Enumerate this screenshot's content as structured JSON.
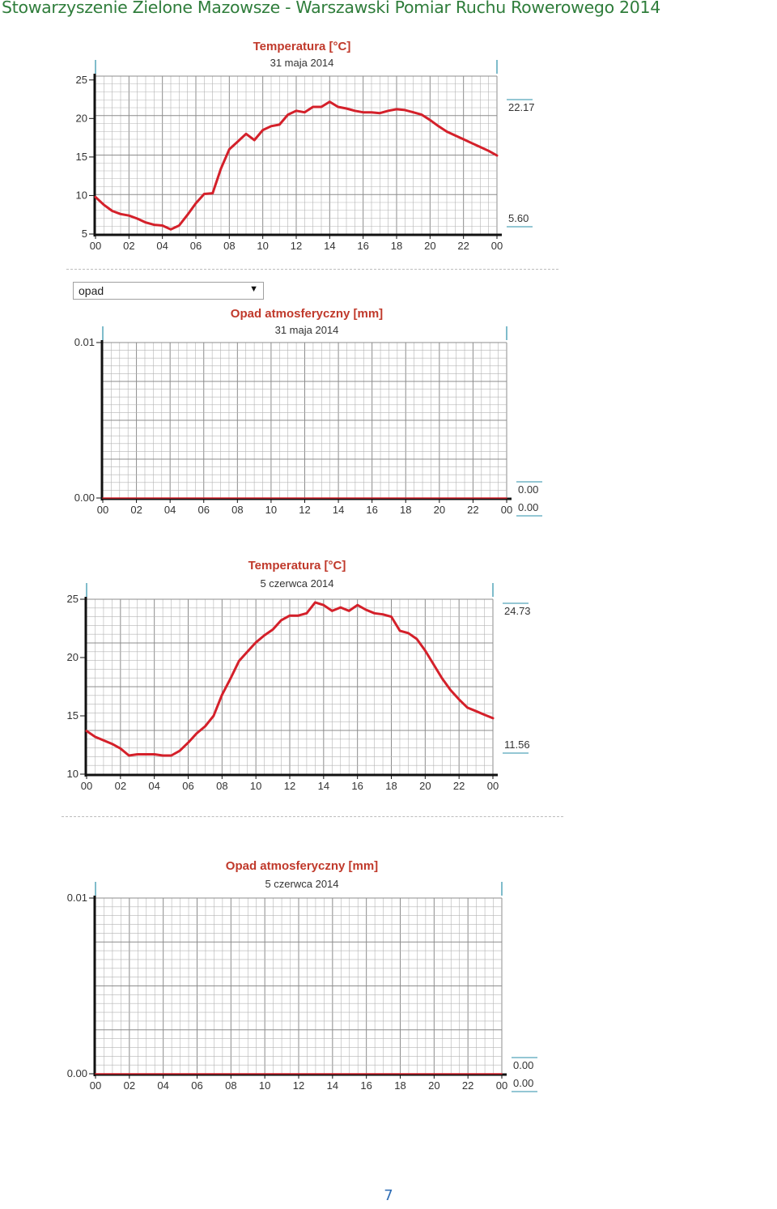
{
  "header": {
    "title": "Stowarzyszenie Zielone Mazowsze   -  Warszawski Pomiar Ruchu Rowerowego 2014"
  },
  "selector": {
    "value": "opad"
  },
  "page_number": "7",
  "colors": {
    "series": "#d4202a",
    "grid": "#b4b4b4",
    "axis": "#111111",
    "header": "#2f7d3b",
    "page_number": "#2f6db5",
    "marker": "#2a8fa8"
  },
  "chart_data": [
    {
      "type": "line",
      "title": "Temperatura [°C]",
      "subtitle": "31 maja 2014",
      "xlabel": "",
      "ylabel": "",
      "x_ticks": [
        "00",
        "02",
        "04",
        "06",
        "08",
        "10",
        "12",
        "14",
        "16",
        "18",
        "20",
        "22",
        "00"
      ],
      "y_ticks": [
        "5",
        "10",
        "15",
        "20",
        "25"
      ],
      "ylim": [
        5,
        25.5
      ],
      "xlim": [
        0,
        24
      ],
      "max_label": "22.17",
      "min_label": "5.60",
      "max_value": 22.17,
      "min_value": 5.6,
      "series": [
        {
          "x": [
            0,
            0.5,
            1,
            1.5,
            2,
            2.5,
            3,
            3.5,
            4,
            4.5,
            5,
            5.5,
            6,
            6.5,
            7,
            7.5,
            8,
            8.5,
            9,
            9.5,
            10,
            10.5,
            11,
            11.5,
            12,
            12.5,
            13,
            13.5,
            14,
            14.5,
            15,
            15.5,
            16,
            16.5,
            17,
            17.5,
            18,
            18.5,
            19,
            19.5,
            20,
            20.5,
            21,
            21.5,
            22,
            22.5,
            23,
            23.5,
            24
          ],
          "y": [
            9.8,
            8.8,
            8.0,
            7.6,
            7.4,
            7.0,
            6.5,
            6.2,
            6.1,
            5.6,
            6.1,
            7.5,
            9.0,
            10.2,
            10.3,
            13.5,
            16.0,
            17.0,
            18.0,
            17.2,
            18.5,
            19.0,
            19.2,
            20.5,
            21.0,
            20.8,
            21.5,
            21.5,
            22.17,
            21.5,
            21.3,
            21.0,
            20.8,
            20.8,
            20.7,
            21.0,
            21.2,
            21.1,
            20.8,
            20.5,
            19.8,
            19.0,
            18.3,
            17.8,
            17.3,
            16.8,
            16.3,
            15.8,
            15.2
          ]
        }
      ]
    },
    {
      "type": "line",
      "title": "Opad atmosferyczny [mm]",
      "subtitle": "31 maja 2014",
      "xlabel": "",
      "ylabel": "",
      "x_ticks": [
        "00",
        "02",
        "04",
        "06",
        "08",
        "10",
        "12",
        "14",
        "16",
        "18",
        "20",
        "22",
        "00"
      ],
      "y_ticks": [
        "0.00",
        "0.01"
      ],
      "ylim": [
        0,
        0.01
      ],
      "xlim": [
        0,
        24
      ],
      "max_label": "0.00",
      "min_label": "0.00",
      "max_value": 0,
      "min_value": 0,
      "series": [
        {
          "x": [
            0,
            24
          ],
          "y": [
            0,
            0
          ]
        }
      ]
    },
    {
      "type": "line",
      "title": "Temperatura [°C]",
      "subtitle": "5 czerwca 2014",
      "xlabel": "",
      "ylabel": "",
      "x_ticks": [
        "00",
        "02",
        "04",
        "06",
        "08",
        "10",
        "12",
        "14",
        "16",
        "18",
        "20",
        "22",
        "00"
      ],
      "y_ticks": [
        "10",
        "15",
        "20",
        "25"
      ],
      "ylim": [
        10,
        25
      ],
      "xlim": [
        0,
        24
      ],
      "max_label": "24.73",
      "min_label": "11.56",
      "max_value": 24.73,
      "min_value": 11.56,
      "series": [
        {
          "x": [
            0,
            0.5,
            1,
            1.5,
            2,
            2.5,
            3,
            3.5,
            4,
            4.5,
            5,
            5.5,
            6,
            6.5,
            7,
            7.5,
            8,
            8.5,
            9,
            9.5,
            10,
            10.5,
            11,
            11.5,
            12,
            12.5,
            13,
            13.5,
            14,
            14.5,
            15,
            15.5,
            16,
            16.5,
            17,
            17.5,
            18,
            18.5,
            19,
            19.5,
            20,
            20.5,
            21,
            21.5,
            22,
            22.5,
            23,
            23.5,
            24
          ],
          "y": [
            13.7,
            13.2,
            12.9,
            12.6,
            12.2,
            11.6,
            11.7,
            11.7,
            11.7,
            11.6,
            11.6,
            12.0,
            12.7,
            13.5,
            14.1,
            15.0,
            16.8,
            18.2,
            19.7,
            20.5,
            21.3,
            21.9,
            22.4,
            23.2,
            23.6,
            23.6,
            23.8,
            24.73,
            24.5,
            24.0,
            24.3,
            24.0,
            24.5,
            24.1,
            23.8,
            23.7,
            23.5,
            22.3,
            22.1,
            21.6,
            20.6,
            19.4,
            18.2,
            17.2,
            16.4,
            15.7,
            15.4,
            15.1,
            14.8
          ]
        }
      ]
    },
    {
      "type": "line",
      "title": "Opad atmosferyczny [mm]",
      "subtitle": "5 czerwca 2014",
      "xlabel": "",
      "ylabel": "",
      "x_ticks": [
        "00",
        "02",
        "04",
        "06",
        "08",
        "10",
        "12",
        "14",
        "16",
        "18",
        "20",
        "22",
        "00"
      ],
      "y_ticks": [
        "0.00",
        "0.01"
      ],
      "ylim": [
        0,
        0.01
      ],
      "xlim": [
        0,
        24
      ],
      "max_label": "0.00",
      "min_label": "0.00",
      "max_value": 0,
      "min_value": 0,
      "series": [
        {
          "x": [
            0,
            24
          ],
          "y": [
            0,
            0
          ]
        }
      ]
    }
  ]
}
